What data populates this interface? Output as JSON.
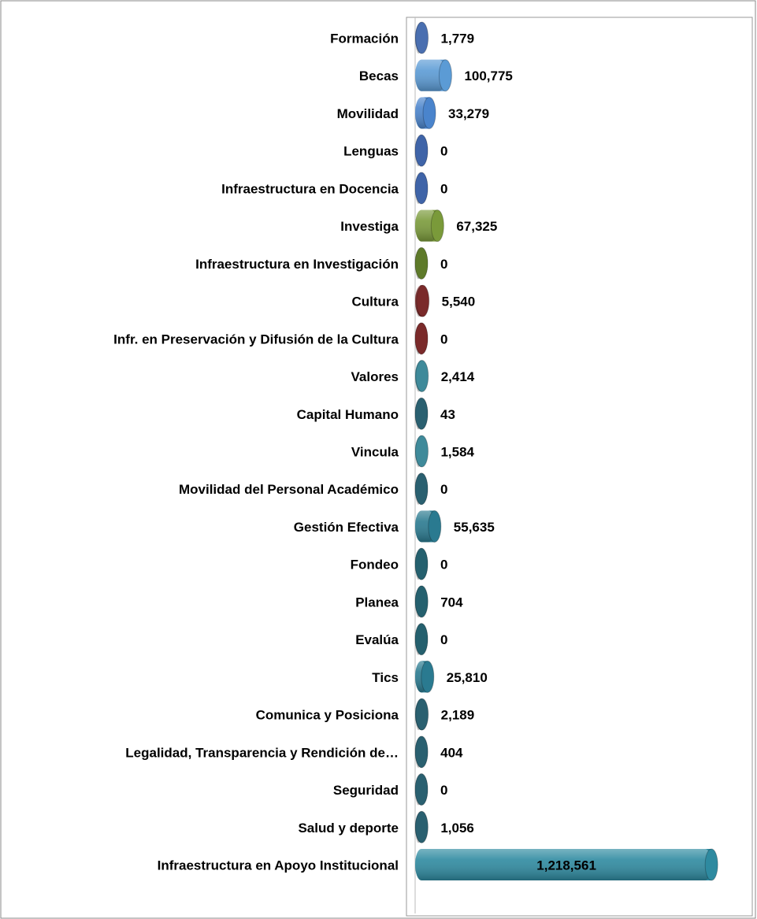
{
  "chart_data": {
    "type": "bar",
    "orientation": "horizontal",
    "categories": [
      "Formación",
      "Becas",
      "Movilidad",
      "Lenguas",
      "Infraestructura en Docencia",
      "Investiga",
      "Infraestructura en Investigación",
      "Cultura",
      "Infr. en Preservación y Difusión de la Cultura",
      "Valores",
      "Capital Humano",
      "Vincula",
      "Movilidad del Personal Académico",
      "Gestión Efectiva",
      "Fondeo",
      "Planea",
      "Evalúa",
      "Tics",
      "Comunica y Posiciona",
      "Legalidad, Transparencia y Rendición de…",
      "Seguridad",
      "Salud y deporte",
      "Infraestructura en Apoyo Institucional"
    ],
    "values": [
      1779,
      100775,
      33279,
      0,
      0,
      67325,
      0,
      5540,
      0,
      2414,
      43,
      1584,
      0,
      55635,
      0,
      704,
      0,
      25810,
      2189,
      404,
      0,
      1056,
      1218561
    ],
    "value_labels": [
      "1,779",
      "100,775",
      "33,279",
      "0",
      "0",
      "67,325",
      "0",
      "5,540",
      "0",
      "2,414",
      "43",
      "1,584",
      "0",
      "55,635",
      "0",
      "704",
      "0",
      "25,810",
      "2,189",
      "404",
      "0",
      "1,056",
      "1,218,561"
    ],
    "colors": [
      "#4a6fb0",
      "#5b9bd5",
      "#4a84cc",
      "#3f64a8",
      "#3f64a8",
      "#7a9a3a",
      "#5e7a2a",
      "#7a2a2a",
      "#7a2a2a",
      "#3f8a9a",
      "#2a6070",
      "#3f8a9a",
      "#2a6070",
      "#2a7a90",
      "#25606e",
      "#25606e",
      "#25606e",
      "#2a7a90",
      "#2a6070",
      "#2a6070",
      "#2a6070",
      "#2a6070",
      "#2e8aa0"
    ],
    "xlim": [
      0,
      1400000
    ]
  }
}
